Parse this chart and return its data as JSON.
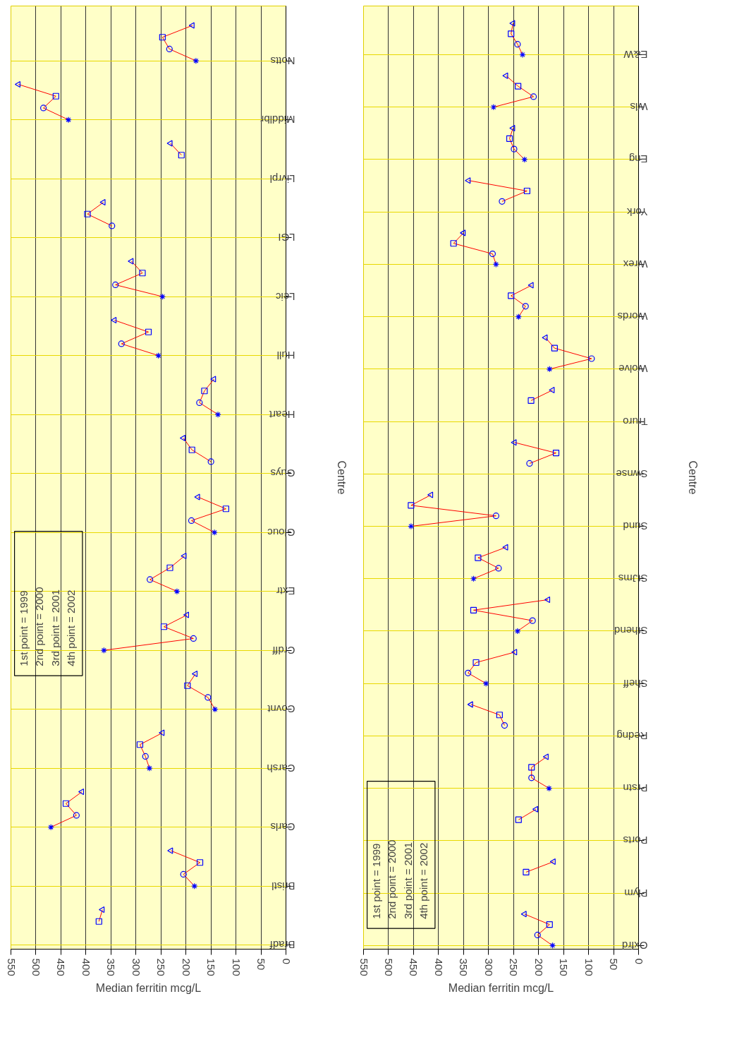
{
  "chart_data": [
    {
      "type": "line",
      "xlabel": "Median ferritin mcg/L",
      "ylabel": "Centre",
      "orientation": "horizontal",
      "categories": [
        null,
        null,
        null,
        null,
        "Notts",
        null,
        null,
        null,
        null,
        "Middlbr",
        null,
        null,
        null,
        null,
        "Livrpl",
        null,
        null,
        null,
        null,
        "LGI",
        null,
        null,
        null,
        null,
        "Leic",
        null,
        null,
        null,
        null,
        "Hull",
        null,
        null,
        null,
        null,
        "Heart",
        null,
        null,
        null,
        null,
        "Guys",
        null,
        null,
        null,
        null,
        "Glouc",
        null,
        null,
        null,
        null,
        "Extr",
        null,
        null,
        null,
        null,
        "Crdff",
        null,
        null,
        null,
        null,
        "Covnt",
        null,
        null,
        null,
        null,
        "Carsh",
        null,
        null,
        null,
        null,
        "Carls",
        null,
        null,
        null,
        null,
        "Bristl",
        null,
        null,
        null,
        null,
        "Bradf"
      ],
      "xlim": [
        550,
        0
      ],
      "xticks": [
        0,
        50,
        100,
        150,
        200,
        250,
        300,
        350,
        400,
        450,
        500,
        550
      ],
      "grid": true,
      "annotations": [
        "1st point = 1999",
        "2nd point = 2000",
        "3rd point = 2001",
        "4th point = 2002"
      ],
      "series": [
        {
          "marker": "none",
          "color": "#ff0000",
          "values": [
            null,
            187,
            247,
            233,
            180,
            null,
            535,
            460,
            485,
            435,
            null,
            231,
            209,
            null,
            null,
            null,
            365,
            397,
            348,
            null,
            null,
            309,
            287,
            341,
            247,
            null,
            343,
            275,
            329,
            255,
            null,
            144,
            163,
            173,
            136,
            null,
            205,
            188,
            150,
            null,
            null,
            176,
            120,
            189,
            143,
            null,
            203,
            232,
            272,
            218,
            null,
            198,
            244,
            185,
            364,
            null,
            181,
            197,
            156,
            142,
            null,
            247,
            292,
            281,
            273,
            null,
            408,
            440,
            419,
            470,
            null,
            230,
            172,
            205,
            183,
            null,
            367,
            374,
            null,
            null
          ]
        },
        {
          "type": "scatter",
          "marker": "cross",
          "color": "#0000ff",
          "values": [
            null,
            null,
            null,
            null,
            180,
            null,
            null,
            null,
            null,
            435,
            null,
            null,
            null,
            null,
            null,
            null,
            null,
            null,
            null,
            null,
            null,
            null,
            null,
            null,
            247,
            null,
            null,
            null,
            null,
            255,
            null,
            null,
            null,
            null,
            136,
            null,
            null,
            null,
            null,
            null,
            null,
            null,
            null,
            null,
            143,
            null,
            null,
            null,
            null,
            218,
            null,
            null,
            null,
            null,
            364,
            null,
            null,
            null,
            null,
            142,
            null,
            null,
            null,
            null,
            273,
            null,
            null,
            null,
            null,
            470,
            null,
            null,
            null,
            null,
            183,
            null,
            null,
            null,
            null,
            null
          ]
        },
        {
          "type": "scatter",
          "marker": "circle",
          "color": "#0000ff",
          "values": [
            null,
            null,
            null,
            233,
            null,
            null,
            null,
            null,
            485,
            null,
            null,
            null,
            null,
            null,
            null,
            null,
            null,
            null,
            348,
            null,
            null,
            null,
            null,
            341,
            null,
            null,
            null,
            null,
            329,
            null,
            null,
            null,
            null,
            173,
            null,
            null,
            null,
            null,
            150,
            null,
            null,
            null,
            null,
            189,
            null,
            null,
            null,
            null,
            272,
            null,
            null,
            null,
            null,
            185,
            null,
            null,
            null,
            null,
            156,
            null,
            null,
            null,
            null,
            281,
            null,
            null,
            null,
            null,
            419,
            null,
            null,
            null,
            null,
            205,
            null,
            null,
            null,
            null,
            null,
            null
          ]
        },
        {
          "type": "scatter",
          "marker": "square",
          "color": "#0000ff",
          "values": [
            null,
            null,
            247,
            null,
            null,
            null,
            null,
            460,
            null,
            null,
            null,
            null,
            209,
            null,
            null,
            null,
            null,
            397,
            null,
            null,
            null,
            null,
            287,
            null,
            null,
            null,
            null,
            275,
            null,
            null,
            null,
            null,
            163,
            null,
            null,
            null,
            null,
            188,
            null,
            null,
            null,
            null,
            120,
            null,
            null,
            null,
            null,
            232,
            null,
            null,
            null,
            null,
            244,
            null,
            null,
            null,
            null,
            197,
            null,
            null,
            null,
            null,
            292,
            null,
            null,
            null,
            null,
            440,
            null,
            null,
            null,
            null,
            172,
            null,
            null,
            null,
            null,
            374,
            null,
            null
          ]
        },
        {
          "type": "scatter",
          "marker": "triangle",
          "color": "#0000ff",
          "values": [
            null,
            187,
            null,
            null,
            null,
            null,
            535,
            null,
            null,
            null,
            null,
            231,
            null,
            null,
            null,
            null,
            365,
            null,
            null,
            null,
            null,
            309,
            null,
            null,
            null,
            null,
            343,
            null,
            null,
            null,
            null,
            144,
            null,
            null,
            null,
            null,
            205,
            null,
            null,
            null,
            null,
            176,
            null,
            null,
            null,
            null,
            203,
            null,
            null,
            null,
            null,
            198,
            null,
            null,
            null,
            null,
            181,
            null,
            null,
            null,
            null,
            247,
            null,
            null,
            null,
            null,
            408,
            null,
            null,
            null,
            null,
            230,
            null,
            null,
            null,
            null,
            367,
            null,
            null,
            null
          ]
        }
      ]
    },
    {
      "type": "line",
      "xlabel": "Median ferritin mcg/L",
      "ylabel": "Centre",
      "orientation": "horizontal",
      "categories": [
        null,
        null,
        null,
        null,
        "E&W",
        null,
        null,
        null,
        null,
        "Wls",
        null,
        null,
        null,
        null,
        "Eng",
        null,
        null,
        null,
        null,
        "York",
        null,
        null,
        null,
        null,
        "Wrex",
        null,
        null,
        null,
        null,
        "Words",
        null,
        null,
        null,
        null,
        "Wolve",
        null,
        null,
        null,
        null,
        "Truro",
        null,
        null,
        null,
        null,
        "Swnse",
        null,
        null,
        null,
        null,
        "Sund",
        null,
        null,
        null,
        null,
        "StJms",
        null,
        null,
        null,
        null,
        "Sthend",
        null,
        null,
        null,
        null,
        "Sheff",
        null,
        null,
        null,
        null,
        "Redng",
        null,
        null,
        null,
        null,
        "Prstn",
        null,
        null,
        null,
        null,
        "Ports",
        null,
        null,
        null,
        null,
        "Plym",
        null,
        null,
        null,
        null,
        "Oxfrd"
      ],
      "xlim": [
        550,
        0
      ],
      "xticks": [
        0,
        50,
        100,
        150,
        200,
        250,
        300,
        350,
        400,
        450,
        500,
        550
      ],
      "grid": true,
      "annotations": [
        "1st point = 1999",
        "2nd point = 2000",
        "3rd point = 2001",
        "4th point = 2002"
      ],
      "series": [
        {
          "marker": "none",
          "color": "#ff0000",
          "values": [
            null,
            251,
            255,
            242,
            232,
            null,
            265,
            241,
            210,
            290,
            null,
            251,
            258,
            249,
            228,
            null,
            340,
            223,
            273,
            null,
            null,
            350,
            370,
            292,
            285,
            null,
            214,
            255,
            226,
            240,
            null,
            186,
            168,
            94,
            178,
            null,
            172,
            215,
            null,
            null,
            null,
            248,
            165,
            218,
            null,
            null,
            415,
            455,
            285,
            455,
            null,
            265,
            321,
            280,
            330,
            null,
            181,
            330,
            212,
            242,
            null,
            247,
            325,
            341,
            305,
            null,
            335,
            278,
            268,
            null,
            null,
            184,
            214,
            214,
            179,
            null,
            205,
            240,
            null,
            null,
            null,
            170,
            225,
            null,
            null,
            null,
            228,
            178,
            202,
            172
          ]
        },
        {
          "type": "scatter",
          "marker": "cross",
          "color": "#0000ff",
          "values": [
            null,
            null,
            null,
            null,
            232,
            null,
            null,
            null,
            null,
            290,
            null,
            null,
            null,
            null,
            228,
            null,
            null,
            null,
            null,
            null,
            null,
            null,
            null,
            null,
            285,
            null,
            null,
            null,
            null,
            240,
            null,
            null,
            null,
            null,
            178,
            null,
            null,
            null,
            null,
            null,
            null,
            null,
            null,
            null,
            null,
            null,
            null,
            null,
            null,
            455,
            null,
            null,
            null,
            null,
            330,
            null,
            null,
            null,
            null,
            242,
            null,
            null,
            null,
            null,
            305,
            null,
            null,
            null,
            null,
            null,
            null,
            null,
            null,
            null,
            179,
            null,
            null,
            null,
            null,
            null,
            null,
            null,
            null,
            null,
            null,
            null,
            null,
            null,
            null,
            172
          ]
        },
        {
          "type": "scatter",
          "marker": "circle",
          "color": "#0000ff",
          "values": [
            null,
            null,
            null,
            242,
            null,
            null,
            null,
            null,
            210,
            null,
            null,
            null,
            null,
            249,
            null,
            null,
            null,
            null,
            273,
            null,
            null,
            null,
            null,
            292,
            null,
            null,
            null,
            null,
            226,
            null,
            null,
            null,
            null,
            94,
            null,
            null,
            null,
            null,
            null,
            null,
            null,
            null,
            null,
            218,
            null,
            null,
            null,
            null,
            285,
            null,
            null,
            null,
            null,
            280,
            null,
            null,
            null,
            null,
            212,
            null,
            null,
            null,
            null,
            341,
            null,
            null,
            null,
            null,
            268,
            null,
            null,
            null,
            null,
            214,
            null,
            null,
            null,
            null,
            null,
            null,
            null,
            null,
            null,
            null,
            null,
            null,
            null,
            null,
            202,
            null
          ]
        },
        {
          "type": "scatter",
          "marker": "square",
          "color": "#0000ff",
          "values": [
            null,
            null,
            255,
            null,
            null,
            null,
            null,
            241,
            null,
            null,
            null,
            null,
            258,
            null,
            null,
            null,
            null,
            223,
            null,
            null,
            null,
            null,
            370,
            null,
            null,
            null,
            null,
            255,
            null,
            null,
            null,
            null,
            168,
            null,
            null,
            null,
            null,
            215,
            null,
            null,
            null,
            null,
            165,
            null,
            null,
            null,
            null,
            455,
            null,
            null,
            null,
            null,
            321,
            null,
            null,
            null,
            null,
            330,
            null,
            null,
            null,
            null,
            325,
            null,
            null,
            null,
            null,
            278,
            null,
            null,
            null,
            null,
            214,
            null,
            null,
            null,
            null,
            240,
            null,
            null,
            null,
            null,
            225,
            null,
            null,
            null,
            null,
            178,
            null,
            null
          ]
        },
        {
          "type": "scatter",
          "marker": "triangle",
          "color": "#0000ff",
          "values": [
            null,
            251,
            null,
            null,
            null,
            null,
            265,
            null,
            null,
            null,
            null,
            251,
            null,
            null,
            null,
            null,
            340,
            null,
            null,
            null,
            null,
            350,
            null,
            null,
            null,
            null,
            214,
            null,
            null,
            null,
            null,
            186,
            null,
            null,
            null,
            null,
            172,
            null,
            null,
            null,
            null,
            248,
            null,
            null,
            null,
            null,
            415,
            null,
            null,
            null,
            null,
            265,
            null,
            null,
            null,
            null,
            181,
            null,
            null,
            null,
            null,
            247,
            null,
            null,
            null,
            null,
            335,
            null,
            null,
            null,
            null,
            184,
            null,
            null,
            null,
            null,
            205,
            null,
            null,
            null,
            null,
            170,
            null,
            null,
            null,
            null,
            228,
            null,
            null,
            null
          ]
        }
      ]
    }
  ]
}
